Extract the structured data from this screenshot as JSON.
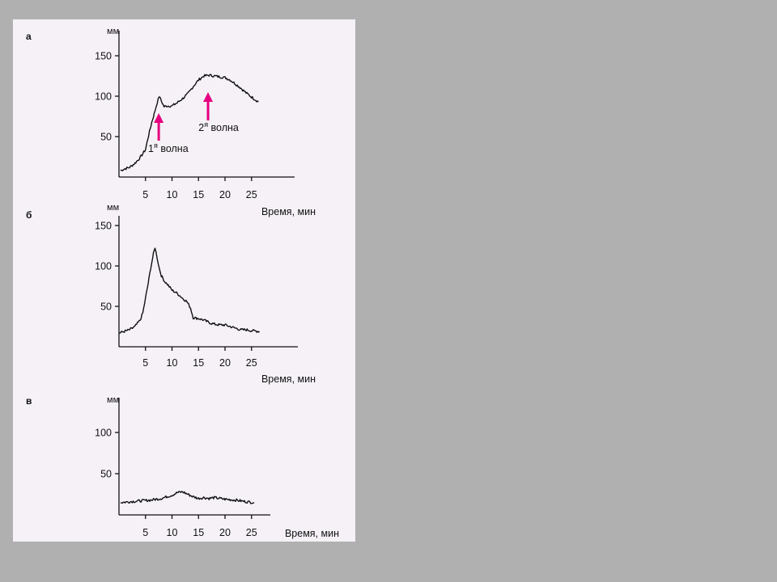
{
  "chart_data": [
    {
      "type": "line",
      "panel": "а",
      "ylabel": "мм",
      "xlabel": "Время, мин",
      "xticks": [
        5,
        10,
        15,
        20,
        25
      ],
      "yticks": [
        50,
        100,
        150
      ],
      "xlim": [
        0,
        33
      ],
      "ylim": [
        0,
        160
      ],
      "x": [
        0.3,
        1,
        2,
        3,
        4,
        5,
        5.6,
        6.2,
        6.8,
        7.2,
        7.6,
        8,
        8.5,
        9,
        10,
        11,
        12,
        13,
        14,
        15,
        16,
        17,
        18,
        19,
        20,
        21,
        22,
        23,
        24,
        25,
        26.3
      ],
      "y": [
        8,
        10,
        12,
        17,
        24,
        34,
        52,
        68,
        82,
        92,
        100,
        94,
        87,
        88,
        88,
        92,
        97,
        103,
        112,
        120,
        125,
        126,
        125,
        124,
        123,
        120,
        115,
        110,
        104,
        99,
        93
      ],
      "annotations": [
        {
          "text": "1",
          "sup": "я",
          "rest": " волна",
          "arrow_x": 7.5,
          "arrow_y_from": 45,
          "arrow_y_to": 77,
          "label_x": 5.5,
          "label_y": 31
        },
        {
          "text": "2",
          "sup": "я",
          "rest": " волна",
          "arrow_x": 16.8,
          "arrow_y_from": 70,
          "arrow_y_to": 103,
          "label_x": 15,
          "label_y": 57
        }
      ]
    },
    {
      "type": "line",
      "panel": "б",
      "ylabel": "мм",
      "xlabel": "Время, мин",
      "xticks": [
        5,
        10,
        15,
        20,
        25
      ],
      "yticks": [
        50,
        100,
        150
      ],
      "xlim": [
        0,
        33
      ],
      "ylim": [
        0,
        160
      ],
      "x": [
        0,
        1,
        2,
        3,
        4,
        4.5,
        5,
        5.5,
        6,
        6.5,
        6.8,
        7.2,
        7.6,
        8,
        8.6,
        9.3,
        10,
        11,
        12,
        12.8,
        13.5,
        14,
        15,
        16,
        17,
        18,
        19,
        20,
        21,
        22,
        23,
        24,
        25,
        26.5
      ],
      "y": [
        17,
        19,
        21,
        25,
        33,
        42,
        60,
        78,
        98,
        115,
        123,
        110,
        97,
        88,
        81,
        76,
        70,
        66,
        60,
        56,
        48,
        36,
        35,
        33,
        30,
        28,
        27,
        27,
        25,
        23,
        21,
        21,
        20,
        19
      ]
    },
    {
      "type": "line",
      "panel": "в",
      "ylabel": "мм",
      "xlabel": "Время, мин",
      "xticks": [
        5,
        10,
        15,
        20,
        25
      ],
      "yticks": [
        50,
        100
      ],
      "xlim": [
        0,
        33
      ],
      "ylim": [
        0,
        135
      ],
      "x": [
        0.3,
        2,
        4,
        6,
        8,
        9,
        10,
        11,
        12,
        13,
        14,
        15,
        16,
        17,
        18,
        20,
        22,
        24,
        25.5
      ],
      "y": [
        15,
        16,
        17,
        18,
        20,
        22,
        24,
        27,
        28,
        25,
        22,
        20,
        21,
        20,
        21,
        19,
        18,
        16,
        15
      ]
    }
  ],
  "colors": {
    "arrow": "#e6007e",
    "line": "#111111",
    "background": "#b0b0b0",
    "slide": "#f5f1f7"
  }
}
